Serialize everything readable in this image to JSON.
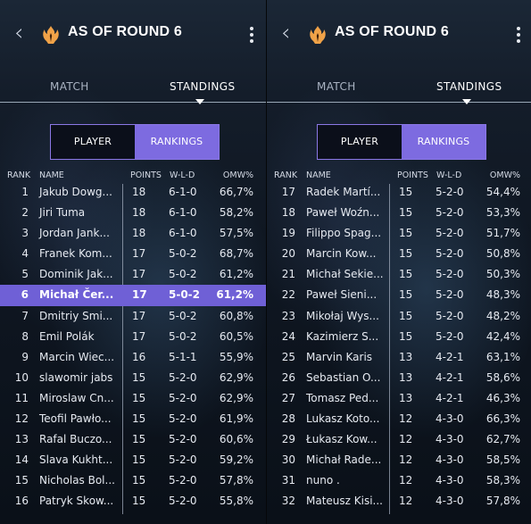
{
  "colors": {
    "accent": "#7d6be0",
    "highlight_row": "#6f60d6",
    "background": "#0f1722"
  },
  "panels": [
    {
      "header": {
        "title": "AS OF ROUND 6",
        "back_icon": "chevron-left-icon",
        "logo_icon": "planeswalker-flame-icon",
        "menu_icon": "kebab-menu-icon"
      },
      "tabs": [
        {
          "label": "MATCH"
        },
        {
          "label": "STANDINGS"
        }
      ],
      "toggle": {
        "player": "PLAYER",
        "rankings": "RANKINGS"
      },
      "columns": {
        "rank": "RANK",
        "name": "NAME",
        "points": "POINTS",
        "wld": "W-L-D",
        "omw": "OMW%"
      },
      "rows": [
        {
          "rank": "1",
          "name": "Jakub Dowg...",
          "points": "18",
          "wld": "6-1-0",
          "omw": "66,7%"
        },
        {
          "rank": "2",
          "name": "Jiri Tuma",
          "points": "18",
          "wld": "6-1-0",
          "omw": "58,2%"
        },
        {
          "rank": "3",
          "name": "Jordan Jank...",
          "points": "18",
          "wld": "6-1-0",
          "omw": "57,5%"
        },
        {
          "rank": "4",
          "name": "Franek Kom...",
          "points": "17",
          "wld": "5-0-2",
          "omw": "68,7%"
        },
        {
          "rank": "5",
          "name": "Dominik Jak...",
          "points": "17",
          "wld": "5-0-2",
          "omw": "61,2%"
        },
        {
          "rank": "6",
          "name": "Michał Čer...",
          "points": "17",
          "wld": "5-0-2",
          "omw": "61,2%",
          "highlight": true
        },
        {
          "rank": "7",
          "name": "Dmitriy Smi...",
          "points": "17",
          "wld": "5-0-2",
          "omw": "60,8%"
        },
        {
          "rank": "8",
          "name": "Emil Polák",
          "points": "17",
          "wld": "5-0-2",
          "omw": "60,5%"
        },
        {
          "rank": "9",
          "name": "Marcin Wiec...",
          "points": "16",
          "wld": "5-1-1",
          "omw": "55,9%"
        },
        {
          "rank": "10",
          "name": "slawomir jabs",
          "points": "15",
          "wld": "5-2-0",
          "omw": "62,9%"
        },
        {
          "rank": "11",
          "name": "Miroslaw Cn...",
          "points": "15",
          "wld": "5-2-0",
          "omw": "62,9%"
        },
        {
          "rank": "12",
          "name": "Teofil Pawło...",
          "points": "15",
          "wld": "5-2-0",
          "omw": "61,9%"
        },
        {
          "rank": "13",
          "name": "Rafal Buczo...",
          "points": "15",
          "wld": "5-2-0",
          "omw": "60,6%"
        },
        {
          "rank": "14",
          "name": "Slava Kukht...",
          "points": "15",
          "wld": "5-2-0",
          "omw": "59,2%"
        },
        {
          "rank": "15",
          "name": "Nicholas Bol...",
          "points": "15",
          "wld": "5-2-0",
          "omw": "57,8%"
        },
        {
          "rank": "16",
          "name": "Patryk Skow...",
          "points": "15",
          "wld": "5-2-0",
          "omw": "55,8%"
        }
      ]
    },
    {
      "header": {
        "title": "AS OF ROUND 6",
        "back_icon": "chevron-left-icon",
        "logo_icon": "planeswalker-flame-icon",
        "menu_icon": "kebab-menu-icon"
      },
      "tabs": [
        {
          "label": "MATCH"
        },
        {
          "label": "STANDINGS"
        }
      ],
      "toggle": {
        "player": "PLAYER",
        "rankings": "RANKINGS"
      },
      "columns": {
        "rank": "RANK",
        "name": "NAME",
        "points": "POINTS",
        "wld": "W-L-D",
        "omw": "OMW%"
      },
      "rows": [
        {
          "rank": "17",
          "name": "Radek Martí...",
          "points": "15",
          "wld": "5-2-0",
          "omw": "54,4%"
        },
        {
          "rank": "18",
          "name": "Paweł Woźn...",
          "points": "15",
          "wld": "5-2-0",
          "omw": "53,3%"
        },
        {
          "rank": "19",
          "name": "Filippo Spag...",
          "points": "15",
          "wld": "5-2-0",
          "omw": "51,7%"
        },
        {
          "rank": "20",
          "name": "Marcin Kow...",
          "points": "15",
          "wld": "5-2-0",
          "omw": "50,8%"
        },
        {
          "rank": "21",
          "name": "Michał Sekie...",
          "points": "15",
          "wld": "5-2-0",
          "omw": "50,3%"
        },
        {
          "rank": "22",
          "name": "Paweł Sieni...",
          "points": "15",
          "wld": "5-2-0",
          "omw": "48,3%"
        },
        {
          "rank": "23",
          "name": "Mikołaj Wys...",
          "points": "15",
          "wld": "5-2-0",
          "omw": "48,2%"
        },
        {
          "rank": "24",
          "name": "Kazimierz S...",
          "points": "15",
          "wld": "5-2-0",
          "omw": "42,4%"
        },
        {
          "rank": "25",
          "name": "Marvin Karis",
          "points": "13",
          "wld": "4-2-1",
          "omw": "63,1%"
        },
        {
          "rank": "26",
          "name": "Sebastian O...",
          "points": "13",
          "wld": "4-2-1",
          "omw": "58,6%"
        },
        {
          "rank": "27",
          "name": "Tomasz Ped...",
          "points": "13",
          "wld": "4-2-1",
          "omw": "46,3%"
        },
        {
          "rank": "28",
          "name": "Lukasz Koto...",
          "points": "12",
          "wld": "4-3-0",
          "omw": "66,3%"
        },
        {
          "rank": "29",
          "name": "Łukasz Kow...",
          "points": "12",
          "wld": "4-3-0",
          "omw": "62,7%"
        },
        {
          "rank": "30",
          "name": "Michał Rade...",
          "points": "12",
          "wld": "4-3-0",
          "omw": "58,5%"
        },
        {
          "rank": "31",
          "name": "nuno .",
          "points": "12",
          "wld": "4-3-0",
          "omw": "58,3%"
        },
        {
          "rank": "32",
          "name": "Mateusz Kisi...",
          "points": "12",
          "wld": "4-3-0",
          "omw": "57,8%"
        }
      ]
    }
  ]
}
